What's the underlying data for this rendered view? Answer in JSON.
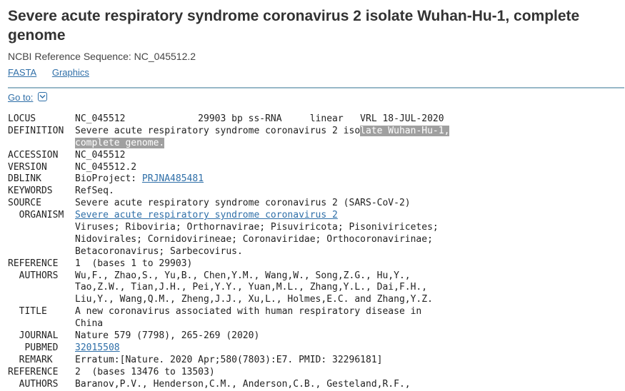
{
  "title": "Severe acute respiratory syndrome coronavirus 2 isolate Wuhan-Hu-1, complete genome",
  "refseq_line": "NCBI Reference Sequence: NC_045512.2",
  "links": {
    "fasta": "FASTA",
    "graphics": "Graphics"
  },
  "goto": "Go to:",
  "record": {
    "locus": {
      "key": "LOCUS",
      "value": "NC_045512             29903 bp ss-RNA     linear   VRL 18-JUL-2020"
    },
    "definition": {
      "key": "DEFINITION",
      "value_plain": "Severe acute respiratory syndrome coronavirus 2 iso",
      "value_highlight": "late Wuhan-Hu-1,",
      "line2_highlight": "complete genome."
    },
    "accession": {
      "key": "ACCESSION",
      "value": "NC_045512"
    },
    "version": {
      "key": "VERSION",
      "value": "NC_045512.2"
    },
    "dblink": {
      "key": "DBLINK",
      "prefix": "BioProject: ",
      "link": "PRJNA485481"
    },
    "keywords": {
      "key": "KEYWORDS",
      "value": "RefSeq."
    },
    "source": {
      "key": "SOURCE",
      "value": "Severe acute respiratory syndrome coronavirus 2 (SARS-CoV-2)"
    },
    "organism": {
      "key": "ORGANISM",
      "link": "Severe acute respiratory syndrome coronavirus 2",
      "lines": [
        "Viruses; Riboviria; Orthornavirae; Pisuviricota; Pisoniviricetes;",
        "Nidovirales; Cornidovirineae; Coronaviridae; Orthocoronavirinae;",
        "Betacoronavirus; Sarbecovirus."
      ]
    },
    "reference1": {
      "key": "REFERENCE",
      "value": "1  (bases 1 to 29903)",
      "authors_key": "AUTHORS",
      "authors": [
        "Wu,F., Zhao,S., Yu,B., Chen,Y.M., Wang,W., Song,Z.G., Hu,Y.,",
        "Tao,Z.W., Tian,J.H., Pei,Y.Y., Yuan,M.L., Zhang,Y.L., Dai,F.H.,",
        "Liu,Y., Wang,Q.M., Zheng,J.J., Xu,L., Holmes,E.C. and Zhang,Y.Z."
      ],
      "title_key": "TITLE",
      "title": [
        "A new coronavirus associated with human respiratory disease in",
        "China"
      ],
      "journal_key": "JOURNAL",
      "journal": "Nature 579 (7798), 265-269 (2020)",
      "pubmed_key": "PUBMED",
      "pubmed": "32015508",
      "remark_key": "REMARK",
      "remark": "Erratum:[Nature. 2020 Apr;580(7803):E7. PMID: 32296181]"
    },
    "reference2": {
      "key": "REFERENCE",
      "value": "2  (bases 13476 to 13503)",
      "authors_key": "AUTHORS",
      "authors": "Baranov,P.V., Henderson,C.M., Anderson,C.B., Gesteland,R.F.,"
    }
  }
}
